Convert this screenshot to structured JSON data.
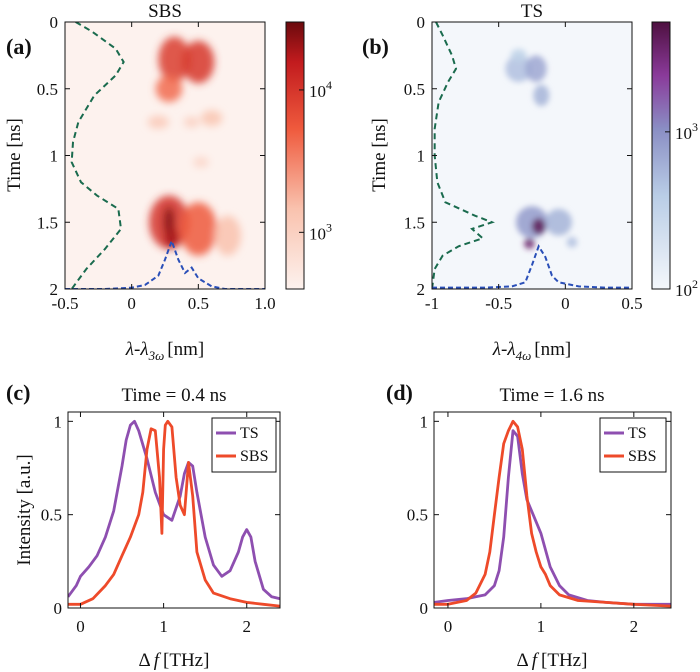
{
  "colors": {
    "ts": "#8e4fb0",
    "sbs": "#ee4a2a",
    "sbs_cmap_low": "#fdf2ee",
    "sbs_cmap_high": "#6b0a0d",
    "ts_cmap_low": "#f4f7fb",
    "ts_cmap_high": "#4e1040",
    "dash_green": "#1a6b4e",
    "dash_blue": "#2a4fb8"
  },
  "chart_data": [
    {
      "panel": "(a)",
      "type": "heatmap",
      "title": "SBS",
      "xlabel": "λ-λ",
      "xlabel_sub": "3ω",
      "xlabel_unit": "[nm]",
      "ylabel": "Time [ns]",
      "xlim": [
        -0.5,
        1.0
      ],
      "ylim": [
        0,
        2
      ],
      "y_reversed": true,
      "xticks": [
        "-0.5",
        "0",
        "0.5",
        "1.0"
      ],
      "xtick_values": [
        -0.5,
        0,
        0.5,
        1.0
      ],
      "yticks": [
        "0",
        "0.5",
        "1",
        "1.5",
        "2"
      ],
      "ytick_values": [
        0,
        0.5,
        1,
        1.5,
        2
      ],
      "colorbar": {
        "scale": "log",
        "min": 400,
        "max": 30000,
        "ticks": [
          "10",
          "10"
        ],
        "tick_exponents": [
          "3",
          "4"
        ],
        "tick_values": [
          1000,
          10000
        ]
      },
      "blobs": [
        {
          "x": 0.32,
          "y": 0.28,
          "sx": 0.12,
          "sy": 0.17,
          "v": 0.72
        },
        {
          "x": 0.5,
          "y": 0.3,
          "sx": 0.12,
          "sy": 0.16,
          "v": 0.74
        },
        {
          "x": 0.28,
          "y": 0.5,
          "sx": 0.1,
          "sy": 0.1,
          "v": 0.55
        },
        {
          "x": 0.2,
          "y": 0.75,
          "sx": 0.08,
          "sy": 0.05,
          "v": 0.25
        },
        {
          "x": 0.45,
          "y": 0.75,
          "sx": 0.06,
          "sy": 0.04,
          "v": 0.22
        },
        {
          "x": 0.6,
          "y": 0.72,
          "sx": 0.08,
          "sy": 0.06,
          "v": 0.28
        },
        {
          "x": 0.52,
          "y": 1.05,
          "sx": 0.06,
          "sy": 0.04,
          "v": 0.18
        },
        {
          "x": 0.28,
          "y": 1.5,
          "sx": 0.15,
          "sy": 0.2,
          "v": 0.75
        },
        {
          "x": 0.5,
          "y": 1.55,
          "sx": 0.14,
          "sy": 0.2,
          "v": 0.6
        },
        {
          "x": 0.28,
          "y": 1.5,
          "sx": 0.04,
          "sy": 0.12,
          "v": 0.96
        },
        {
          "x": 0.3,
          "y": 1.62,
          "sx": 0.05,
          "sy": 0.08,
          "v": 0.9
        },
        {
          "x": 0.72,
          "y": 1.6,
          "sx": 0.1,
          "sy": 0.15,
          "v": 0.3
        }
      ],
      "green_curve": {
        "t": [
          0,
          0.07,
          0.2,
          0.3,
          0.4,
          0.55,
          0.75,
          0.9,
          1.05,
          1.2,
          1.3,
          1.4,
          1.55,
          1.7,
          1.85,
          2.0
        ],
        "x": [
          -0.42,
          -0.3,
          -0.12,
          -0.06,
          -0.12,
          -0.28,
          -0.4,
          -0.44,
          -0.45,
          -0.38,
          -0.26,
          -0.1,
          -0.08,
          -0.2,
          -0.34,
          -0.45
        ]
      },
      "blue_curve": {
        "x": [
          -0.5,
          -0.2,
          0.0,
          0.1,
          0.2,
          0.25,
          0.3,
          0.35,
          0.4,
          0.45,
          0.5,
          0.6,
          0.7,
          0.8,
          1.0
        ],
        "t": [
          2.0,
          2.0,
          1.99,
          1.97,
          1.9,
          1.78,
          1.64,
          1.78,
          1.88,
          1.84,
          1.92,
          1.98,
          2.0,
          2.0,
          2.0
        ]
      }
    },
    {
      "panel": "(b)",
      "type": "heatmap",
      "title": "TS",
      "xlabel": "λ-λ",
      "xlabel_sub": "4ω",
      "xlabel_unit": "[nm]",
      "ylabel": "Time [ns]",
      "xlim": [
        -1,
        0.5
      ],
      "ylim": [
        0,
        2
      ],
      "y_reversed": true,
      "xticks": [
        "-1",
        "-0.5",
        "0",
        "0.5"
      ],
      "xtick_values": [
        -1,
        -0.5,
        0,
        0.5
      ],
      "yticks": [
        "0",
        "0.5",
        "1",
        "1.5",
        "2"
      ],
      "ytick_values": [
        0,
        0.5,
        1,
        1.5,
        2
      ],
      "colorbar": {
        "scale": "log",
        "min": 100,
        "max": 5000,
        "ticks": [
          "10",
          "10"
        ],
        "tick_exponents": [
          "2",
          "3"
        ],
        "tick_values": [
          100,
          1000
        ]
      },
      "blobs": [
        {
          "x": -0.35,
          "y": 0.35,
          "sx": 0.1,
          "sy": 0.1,
          "v": 0.4
        },
        {
          "x": -0.22,
          "y": 0.35,
          "sx": 0.08,
          "sy": 0.1,
          "v": 0.5
        },
        {
          "x": -0.18,
          "y": 0.55,
          "sx": 0.06,
          "sy": 0.08,
          "v": 0.45
        },
        {
          "x": -0.35,
          "y": 0.25,
          "sx": 0.06,
          "sy": 0.05,
          "v": 0.3
        },
        {
          "x": -0.25,
          "y": 1.5,
          "sx": 0.12,
          "sy": 0.12,
          "v": 0.55
        },
        {
          "x": -0.05,
          "y": 1.5,
          "sx": 0.1,
          "sy": 0.1,
          "v": 0.45
        },
        {
          "x": -0.2,
          "y": 1.53,
          "sx": 0.05,
          "sy": 0.06,
          "v": 0.95
        },
        {
          "x": -0.27,
          "y": 1.66,
          "sx": 0.04,
          "sy": 0.04,
          "v": 0.9
        },
        {
          "x": 0.05,
          "y": 1.65,
          "sx": 0.04,
          "sy": 0.04,
          "v": 0.4
        }
      ],
      "green_curve": {
        "t": [
          0,
          0.1,
          0.25,
          0.35,
          0.45,
          0.6,
          0.8,
          1.0,
          1.2,
          1.35,
          1.45,
          1.5,
          1.55,
          1.62,
          1.68,
          1.75,
          1.85,
          2.0
        ],
        "x": [
          -0.97,
          -0.92,
          -0.85,
          -0.82,
          -0.88,
          -0.95,
          -0.98,
          -0.98,
          -0.96,
          -0.9,
          -0.68,
          -0.55,
          -0.7,
          -0.62,
          -0.8,
          -0.92,
          -0.98,
          -1.0
        ]
      },
      "blue_curve": {
        "x": [
          -1.0,
          -0.6,
          -0.4,
          -0.3,
          -0.25,
          -0.2,
          -0.15,
          -0.1,
          -0.05,
          0.0,
          0.1,
          0.3,
          0.5
        ],
        "t": [
          1.99,
          1.99,
          1.98,
          1.95,
          1.82,
          1.68,
          1.76,
          1.9,
          1.95,
          1.96,
          1.98,
          1.99,
          1.99
        ]
      }
    },
    {
      "panel": "(c)",
      "type": "line",
      "title": "Time = 0.4 ns",
      "xlabel": "Δ",
      "xlabel_var": "f",
      "xlabel_unit": "[THz]",
      "ylabel": "Intensity [a.u.]",
      "xlim": [
        -0.15,
        2.4
      ],
      "ylim": [
        0,
        1.05
      ],
      "xticks": [
        "0",
        "1",
        "2"
      ],
      "xtick_values": [
        0,
        1,
        2
      ],
      "yticks": [
        "0",
        "0.5",
        "1"
      ],
      "ytick_values": [
        0,
        0.5,
        1
      ],
      "legend_position": "top-right",
      "series": [
        {
          "name": "TS",
          "x": [
            -0.15,
            -0.05,
            0.0,
            0.1,
            0.2,
            0.3,
            0.4,
            0.5,
            0.55,
            0.6,
            0.65,
            0.7,
            0.8,
            0.9,
            1.0,
            1.1,
            1.2,
            1.25,
            1.3,
            1.35,
            1.4,
            1.5,
            1.6,
            1.7,
            1.8,
            1.9,
            1.95,
            2.0,
            2.05,
            2.1,
            2.2,
            2.3,
            2.4
          ],
          "y": [
            0.06,
            0.12,
            0.17,
            0.22,
            0.28,
            0.38,
            0.52,
            0.76,
            0.9,
            0.98,
            1.0,
            0.95,
            0.8,
            0.62,
            0.5,
            0.47,
            0.6,
            0.72,
            0.78,
            0.76,
            0.62,
            0.38,
            0.23,
            0.17,
            0.2,
            0.3,
            0.38,
            0.42,
            0.38,
            0.25,
            0.1,
            0.06,
            0.05
          ]
        },
        {
          "name": "SBS",
          "x": [
            -0.15,
            0.0,
            0.15,
            0.3,
            0.4,
            0.5,
            0.6,
            0.7,
            0.75,
            0.8,
            0.85,
            0.9,
            0.95,
            0.98,
            1.0,
            1.02,
            1.05,
            1.1,
            1.15,
            1.2,
            1.25,
            1.3,
            1.35,
            1.4,
            1.5,
            1.6,
            1.8,
            2.0,
            2.2,
            2.4
          ],
          "y": [
            0.02,
            0.02,
            0.05,
            0.12,
            0.18,
            0.28,
            0.38,
            0.5,
            0.62,
            0.85,
            0.96,
            0.95,
            0.7,
            0.4,
            0.85,
            0.98,
            1.0,
            0.97,
            0.7,
            0.55,
            0.5,
            0.78,
            0.6,
            0.3,
            0.15,
            0.08,
            0.05,
            0.03,
            0.02,
            0.01
          ]
        }
      ]
    },
    {
      "panel": "(d)",
      "type": "line",
      "title": "Time = 1.6 ns",
      "xlabel": "Δ",
      "xlabel_var": "f",
      "xlabel_unit": "[THz]",
      "ylabel": "",
      "xlim": [
        -0.15,
        2.4
      ],
      "ylim": [
        0,
        1.05
      ],
      "xticks": [
        "0",
        "1",
        "2"
      ],
      "xtick_values": [
        0,
        1,
        2
      ],
      "yticks": [
        "0",
        "0.5",
        "1"
      ],
      "ytick_values": [
        0,
        0.5,
        1
      ],
      "legend_position": "top-right",
      "series": [
        {
          "name": "TS",
          "x": [
            -0.15,
            0.0,
            0.2,
            0.3,
            0.4,
            0.5,
            0.55,
            0.6,
            0.65,
            0.7,
            0.75,
            0.8,
            0.85,
            0.9,
            1.0,
            1.1,
            1.2,
            1.3,
            1.5,
            1.7,
            2.0,
            2.4
          ],
          "y": [
            0.03,
            0.04,
            0.05,
            0.06,
            0.07,
            0.12,
            0.2,
            0.38,
            0.7,
            0.95,
            0.92,
            0.72,
            0.58,
            0.52,
            0.4,
            0.22,
            0.12,
            0.07,
            0.04,
            0.03,
            0.02,
            0.02
          ]
        },
        {
          "name": "SBS",
          "x": [
            -0.15,
            0.0,
            0.2,
            0.3,
            0.4,
            0.45,
            0.5,
            0.55,
            0.6,
            0.65,
            0.7,
            0.75,
            0.8,
            0.85,
            0.9,
            0.95,
            1.0,
            1.05,
            1.1,
            1.2,
            1.4,
            1.7,
            2.0,
            2.4
          ],
          "y": [
            0.02,
            0.02,
            0.04,
            0.08,
            0.18,
            0.3,
            0.5,
            0.7,
            0.88,
            0.95,
            1.0,
            0.97,
            0.85,
            0.6,
            0.4,
            0.3,
            0.22,
            0.18,
            0.12,
            0.07,
            0.04,
            0.03,
            0.02,
            0.01
          ]
        }
      ]
    }
  ]
}
